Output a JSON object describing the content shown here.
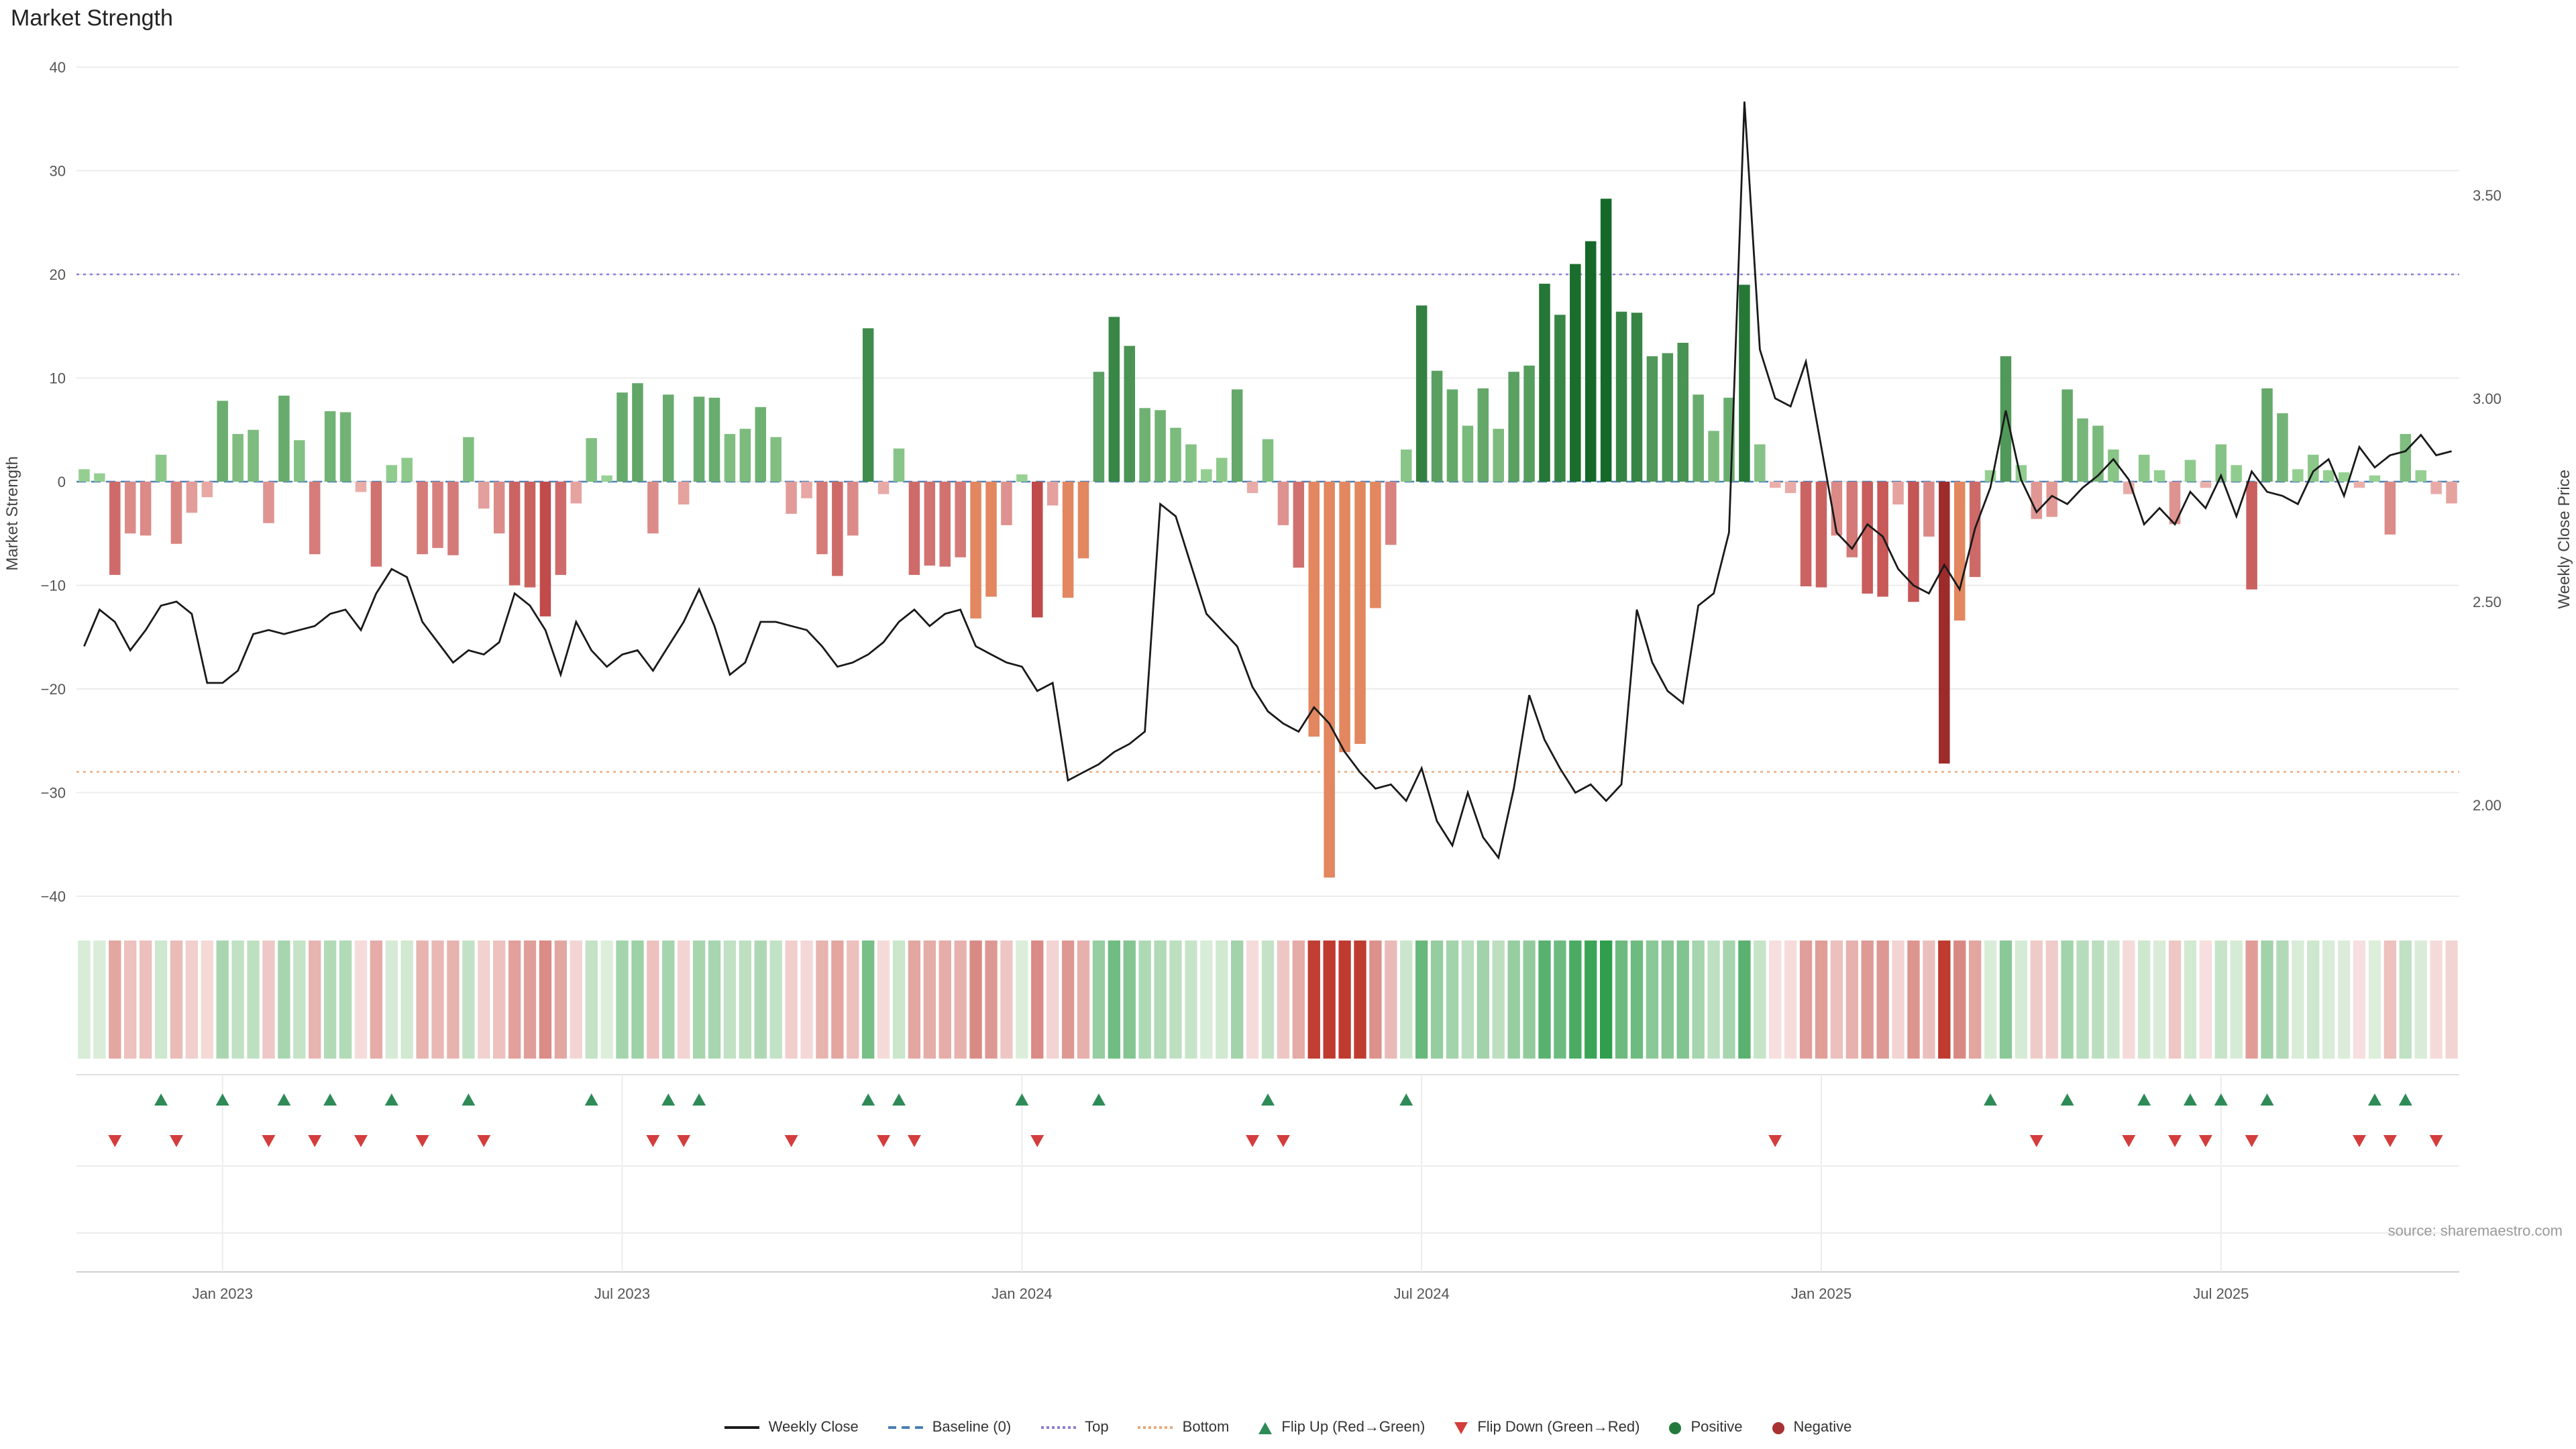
{
  "title": "Market Strength",
  "source": "source: sharemaestro.com",
  "axes": {
    "left_label": "Market Strength",
    "right_label": "Weekly Close Price",
    "left_ticks": [
      40,
      30,
      20,
      10,
      0,
      -10,
      -20,
      -30,
      -40
    ],
    "right_ticks": [
      {
        "value": 3.5,
        "label": "3.50"
      },
      {
        "value": 3.0,
        "label": "3.00"
      },
      {
        "value": 2.5,
        "label": "2.50"
      },
      {
        "value": 2.0,
        "label": "2.00"
      }
    ],
    "x_ticks": [
      {
        "week": 10,
        "label": "Jan 2023"
      },
      {
        "week": 36,
        "label": "Jul 2023"
      },
      {
        "week": 62,
        "label": "Jan 2024"
      },
      {
        "week": 88,
        "label": "Jul 2024"
      },
      {
        "week": 114,
        "label": "Jan 2025"
      },
      {
        "week": 140,
        "label": "Jul 2025"
      }
    ]
  },
  "reference_lines": {
    "baseline": {
      "label": "Baseline (0)",
      "value": 0
    },
    "top": {
      "label": "Top",
      "value": 20
    },
    "bottom": {
      "label": "Bottom",
      "value": -28
    }
  },
  "colors": {
    "line": "#1a1a1a",
    "baseline": "#4a7fb5",
    "top_line": "#8a7fd4",
    "bottom_line": "#e8a87c",
    "flip_up": "#2e8b57",
    "flip_down": "#d43d3d",
    "bar_extreme_negative": "#e2875f",
    "bar_dark_negative": "#9e2b2b",
    "grid": "#ececec",
    "axis_text": "#555555",
    "source_text": "#9a9a9a"
  },
  "legend": {
    "items": [
      {
        "label": "Weekly Close",
        "swatch": "solid-line",
        "color": "#1a1a1a",
        "icon": "weekly-close-line-icon"
      },
      {
        "label": "Baseline (0)",
        "swatch": "dashed-line",
        "color": "#4a7fb5",
        "icon": "baseline-line-icon"
      },
      {
        "label": "Top",
        "swatch": "dotted-line",
        "color": "#8a7fd4",
        "icon": "top-line-icon"
      },
      {
        "label": "Bottom",
        "swatch": "dotted-line",
        "color": "#e8a87c",
        "icon": "bottom-line-icon"
      },
      {
        "label": "Flip Up (Red→Green)",
        "swatch": "tri-up",
        "color": "#2e8b57",
        "icon": "flip-up-triangle-icon"
      },
      {
        "label": "Flip Down (Green→Red)",
        "swatch": "tri-down",
        "color": "#d43d3d",
        "icon": "flip-down-triangle-icon"
      },
      {
        "label": "Positive",
        "swatch": "dot",
        "color": "#217a3c",
        "icon": "positive-dot-icon"
      },
      {
        "label": "Negative",
        "swatch": "dot",
        "color": "#a83232",
        "icon": "negative-dot-icon"
      }
    ]
  },
  "chart_data": {
    "type": "bar+line",
    "title": "Market Strength",
    "xlabel": "",
    "ylabel_left": "Market Strength",
    "ylabel_right": "Weekly Close Price",
    "ylim_strength": [
      -40,
      40
    ],
    "price_axis_ticks": [
      3.5,
      3.0,
      2.5,
      2.0
    ],
    "x_tick_labels": [
      "Jan 2023",
      "Jul 2023",
      "Jan 2024",
      "Jul 2024",
      "Jan 2025",
      "Jul 2025"
    ],
    "x_tick_weeks": [
      10,
      36,
      62,
      88,
      114,
      140
    ],
    "reference": {
      "baseline": 0,
      "top": 20,
      "bottom": -28
    },
    "legend_position": "bottom",
    "grid": true,
    "series": [
      {
        "name": "Market Strength",
        "type": "bar",
        "axis": "left",
        "values": [
          1.2,
          0.8,
          -9,
          -5,
          -5.2,
          2.6,
          -6,
          -3,
          -1.5,
          7.8,
          4.6,
          5.0,
          -4,
          8.3,
          4.0,
          -7,
          6.8,
          6.7,
          -1,
          -8.2,
          1.6,
          2.3,
          -7,
          -6.4,
          -7.1,
          4.3,
          -2.6,
          -5,
          -10,
          -10.2,
          -13,
          -9,
          -2.1,
          4.2,
          0.6,
          8.6,
          9.5,
          -5,
          8.4,
          -2.2,
          8.2,
          8.1,
          4.6,
          5.1,
          7.2,
          4.3,
          -3.1,
          -1.6,
          -7,
          -9.1,
          -5.2,
          14.8,
          -1.2,
          3.2,
          -9,
          -8.1,
          -8.2,
          -7.3,
          -13.2,
          -11.1,
          -4.2,
          0.7,
          -13.1,
          -2.3,
          -11.2,
          -7.4,
          10.6,
          15.9,
          13.1,
          7.1,
          6.9,
          5.2,
          3.6,
          1.2,
          2.3,
          8.9,
          -1.1,
          4.1,
          -4.2,
          -8.3,
          -24.6,
          -38.2,
          -26.1,
          -25.3,
          -12.2,
          -6.1,
          3.1,
          17.0,
          10.7,
          8.9,
          5.4,
          9.0,
          5.1,
          10.6,
          11.2,
          19.1,
          16.1,
          21.0,
          23.2,
          27.3,
          16.4,
          16.3,
          12.1,
          12.4,
          13.4,
          8.4,
          4.9,
          8.1,
          19.0,
          3.6,
          -0.6,
          -1.1,
          -10.1,
          -10.2,
          -5.2,
          -7.3,
          -10.8,
          -11.1,
          -2.2,
          -11.6,
          -5.3,
          -27.2,
          -13.4,
          -9.2,
          1.1,
          12.1,
          1.6,
          -3.6,
          -3.4,
          8.9,
          6.1,
          5.4,
          3.1,
          -1.2,
          2.6,
          1.1,
          -4.1,
          2.1,
          -0.6,
          3.6,
          1.6,
          -10.4,
          9.0,
          6.6,
          1.2,
          2.6,
          1.1,
          0.9,
          -0.6,
          0.6,
          -5.1,
          4.6,
          1.1,
          -1.2,
          -2.1
        ]
      },
      {
        "name": "Weekly Close",
        "type": "line",
        "axis": "right",
        "values": [
          2.39,
          2.48,
          2.45,
          2.38,
          2.43,
          2.49,
          2.5,
          2.47,
          2.3,
          2.3,
          2.33,
          2.42,
          2.43,
          2.42,
          2.43,
          2.44,
          2.47,
          2.48,
          2.43,
          2.52,
          2.58,
          2.56,
          2.45,
          2.4,
          2.35,
          2.38,
          2.37,
          2.4,
          2.52,
          2.49,
          2.43,
          2.32,
          2.45,
          2.38,
          2.34,
          2.37,
          2.38,
          2.33,
          2.39,
          2.45,
          2.53,
          2.44,
          2.32,
          2.35,
          2.45,
          2.45,
          2.44,
          2.43,
          2.39,
          2.34,
          2.35,
          2.37,
          2.4,
          2.45,
          2.48,
          2.44,
          2.47,
          2.48,
          2.39,
          2.37,
          2.35,
          2.34,
          2.28,
          2.3,
          2.06,
          2.08,
          2.1,
          2.13,
          2.15,
          2.18,
          2.74,
          2.71,
          2.59,
          2.47,
          2.43,
          2.39,
          2.29,
          2.23,
          2.2,
          2.18,
          2.24,
          2.2,
          2.13,
          2.08,
          2.04,
          2.05,
          2.01,
          2.09,
          1.96,
          1.9,
          2.03,
          1.92,
          1.87,
          2.04,
          2.27,
          2.16,
          2.09,
          2.03,
          2.05,
          2.01,
          2.05,
          2.48,
          2.35,
          2.28,
          2.25,
          2.49,
          2.52,
          2.67,
          3.73,
          3.12,
          3.0,
          2.98,
          3.09,
          2.88,
          2.67,
          2.63,
          2.69,
          2.66,
          2.58,
          2.54,
          2.52,
          2.59,
          2.53,
          2.68,
          2.78,
          2.97,
          2.8,
          2.72,
          2.76,
          2.74,
          2.78,
          2.81,
          2.85,
          2.8,
          2.69,
          2.73,
          2.69,
          2.77,
          2.73,
          2.81,
          2.71,
          2.82,
          2.77,
          2.76,
          2.74,
          2.82,
          2.85,
          2.76,
          2.88,
          2.83,
          2.86,
          2.87,
          2.91,
          2.86,
          2.87
        ]
      }
    ],
    "bar_color_overrides": {
      "58": "extreme",
      "59": "extreme",
      "64": "extreme",
      "65": "extreme",
      "84": "extreme",
      "121": "dark",
      "122": "extreme"
    }
  }
}
